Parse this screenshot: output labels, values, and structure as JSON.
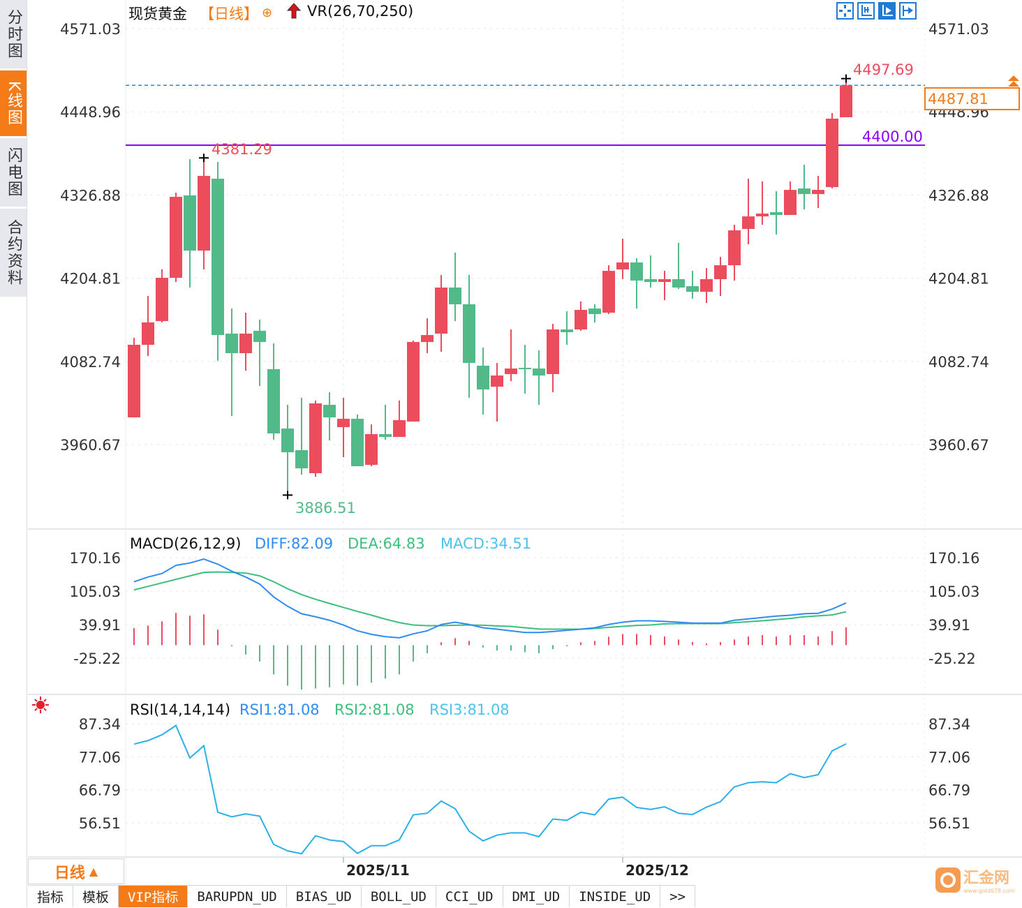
{
  "left_tabs": [
    {
      "label": "分时图",
      "active": false
    },
    {
      "label": "K线图",
      "active": true
    },
    {
      "label": "闪电图",
      "active": false
    },
    {
      "label": "合约资料",
      "active": false
    }
  ],
  "header": {
    "name": "现货黄金",
    "period": "【日线】",
    "indicator": "VR(26,70,250)",
    "icons": [
      "target-icon",
      "red-up-arrow-icon"
    ]
  },
  "toolbar": {
    "icons": [
      "crosshair-icon",
      "zoom-in-icon",
      "zoom-out-icon",
      "scroll-to-end-icon"
    ]
  },
  "colors": {
    "up": "#eb4d5c",
    "down": "#52b988",
    "ref_line": "#8b00ff",
    "last_price_line": "#1e88f0",
    "accent": "#f47b17",
    "diff": "#2f8cf0",
    "dea": "#3cbf7d",
    "rsi": "#2ab0e8"
  },
  "price_labels": {
    "high": "4381.29",
    "session_high": "4497.69",
    "low": "3886.51",
    "ref_line": "4400.00",
    "last_price": "4487.81"
  },
  "chart_data": [
    {
      "type": "candlestick",
      "title": "现货黄金",
      "y_ticks": [
        "4571.03",
        "4448.96",
        "4326.88",
        "4204.81",
        "4082.74",
        "3960.67"
      ],
      "ylim": [
        3960.67,
        4571.03
      ],
      "ref_line": 4400.0,
      "last_price": 4487.81,
      "x_ticks": [
        {
          "index": 15,
          "label": "2025/11"
        },
        {
          "index": 35,
          "label": "2025/12"
        }
      ],
      "ohlc": [
        [
          4000.6,
          4117.3,
          4000.6,
          4107.1
        ],
        [
          4107.1,
          4178.8,
          4090.7,
          4139.9
        ],
        [
          4141.9,
          4217.7,
          4139.9,
          4205.4
        ],
        [
          4205.4,
          4330.3,
          4199.3,
          4324.2
        ],
        [
          4326.3,
          4379.5,
          4191.1,
          4245.3
        ],
        [
          4245.3,
          4381.29,
          4217.7,
          4354.9
        ],
        [
          4350.8,
          4375.4,
          4083.5,
          4121.4
        ],
        [
          4123.5,
          4160.3,
          4002.6,
          4094.8
        ],
        [
          4094.8,
          4154.2,
          4069.2,
          4123.5
        ],
        [
          4127.6,
          4144.0,
          4046.7,
          4111.2
        ],
        [
          4071.3,
          4109.1,
          3967.8,
          3977.0
        ],
        [
          3984.2,
          4019.0,
          3886.51,
          3949.4
        ],
        [
          3952.5,
          4029.3,
          3916.6,
          3925.8
        ],
        [
          3918.7,
          4025.2,
          3913.5,
          4021.1
        ],
        [
          4019.0,
          4037.5,
          3966.8,
          4000.6
        ],
        [
          3986.3,
          4029.3,
          3942.2,
          3998.5
        ],
        [
          3998.5,
          4004.7,
          3928.9,
          3928.9
        ],
        [
          3930.9,
          3990.3,
          3928.9,
          3976.0
        ],
        [
          3976.0,
          4019.0,
          3967.8,
          3971.9
        ],
        [
          3971.9,
          4025.2,
          3971.9,
          3996.5
        ],
        [
          3994.4,
          4113.2,
          3994.4,
          4111.2
        ],
        [
          4111.2,
          4146.0,
          4094.8,
          4121.4
        ],
        [
          4123.5,
          4209.5,
          4096.9,
          4191.1
        ],
        [
          4191.1,
          4242.3,
          4141.9,
          4166.5
        ],
        [
          4166.5,
          4209.5,
          4029.3,
          4080.5
        ],
        [
          4076.4,
          4103.0,
          4004.7,
          4041.6
        ],
        [
          4045.6,
          4080.5,
          3994.4,
          4062.0
        ],
        [
          4064.1,
          4129.6,
          4053.8,
          4072.3
        ],
        [
          4073.3,
          4107.1,
          4035.4,
          4072.3
        ],
        [
          4072.3,
          4098.9,
          4019.0,
          4062.0
        ],
        [
          4064.1,
          4137.8,
          4037.5,
          4129.6
        ],
        [
          4129.6,
          4156.3,
          4107.1,
          4125.5
        ],
        [
          4129.6,
          4170.6,
          4127.6,
          4158.3
        ],
        [
          4160.3,
          4166.5,
          4139.9,
          4152.2
        ],
        [
          4154.2,
          4223.8,
          4152.2,
          4215.6
        ],
        [
          4217.7,
          4262.8,
          4203.4,
          4227.9
        ],
        [
          4227.9,
          4234.1,
          4160.3,
          4201.3
        ],
        [
          4203.4,
          4238.2,
          4191.1,
          4199.3
        ],
        [
          4199.3,
          4215.6,
          4172.6,
          4203.4
        ],
        [
          4203.4,
          4256.6,
          4189.0,
          4191.1
        ],
        [
          4193.1,
          4215.6,
          4174.7,
          4184.9
        ],
        [
          4184.9,
          4219.7,
          4168.5,
          4203.4
        ],
        [
          4203.4,
          4236.1,
          4178.8,
          4223.8
        ],
        [
          4223.8,
          4283.2,
          4201.3,
          4275.0
        ],
        [
          4277.1,
          4350.8,
          4254.6,
          4295.5
        ],
        [
          4295.5,
          4346.7,
          4283.2,
          4299.6
        ],
        [
          4301.7,
          4332.4,
          4268.9,
          4297.6
        ],
        [
          4297.6,
          4346.7,
          4297.6,
          4334.4
        ],
        [
          4336.5,
          4371.3,
          4305.8,
          4328.3
        ],
        [
          4328.3,
          4354.9,
          4307.8,
          4334.4
        ],
        [
          4338.5,
          4447.1,
          4336.5,
          4438.9
        ],
        [
          4441.0,
          4497.69,
          4441.0,
          4487.81
        ]
      ]
    },
    {
      "type": "line",
      "title": "MACD(26,12,9)",
      "y_ticks": [
        "170.16",
        "105.03",
        "39.91",
        "-25.22"
      ],
      "ylim": [
        -25.22,
        170.16
      ],
      "legend": [
        {
          "label": "DIFF:82.09"
        },
        {
          "label": "DEA:64.83"
        },
        {
          "label": "MACD:34.51"
        }
      ],
      "diff": [
        123.3,
        132.4,
        139.3,
        155.2,
        159.7,
        167.4,
        157.4,
        143.8,
        132.4,
        118.8,
        93.8,
        75.6,
        61.1,
        55.2,
        48.4,
        39.2,
        27.9,
        21.1,
        16.5,
        14.3,
        22.0,
        27.9,
        40.2,
        44.7,
        40.2,
        33.8,
        31.1,
        27.9,
        24.7,
        24.7,
        26.5,
        28.8,
        31.1,
        33.8,
        40.2,
        44.7,
        47.4,
        47.4,
        46.1,
        44.7,
        42.9,
        42.9,
        42.9,
        48.4,
        51.1,
        53.8,
        56.5,
        58.3,
        61.1,
        62.0,
        70.2,
        82.09
      ],
      "dea": [
        107.4,
        114.3,
        121.1,
        127.9,
        134.7,
        141.5,
        142.4,
        141.5,
        140.2,
        134.7,
        123.3,
        109.7,
        98.3,
        89.2,
        81.1,
        73.4,
        65.6,
        58.4,
        50.6,
        43.8,
        39.2,
        37.9,
        37.9,
        38.8,
        39.2,
        38.8,
        37.4,
        36.5,
        33.8,
        31.5,
        31.1,
        31.1,
        31.1,
        32.4,
        34.7,
        36.5,
        38.3,
        39.2,
        41.5,
        42.0,
        42.0,
        42.0,
        42.0,
        43.8,
        45.6,
        47.4,
        49.7,
        52.0,
        55.2,
        57.0,
        58.8,
        64.83
      ],
      "macd": [
        33.2,
        38.2,
        46.4,
        62.7,
        57.3,
        60.0,
        30.0,
        -2.3,
        -18.2,
        -31.8,
        -56.8,
        -78.6,
        -86.4,
        -84.1,
        -81.8,
        -76.4,
        -78.6,
        -72.7,
        -65.0,
        -56.8,
        -31.8,
        -15.9,
        5.5,
        13.6,
        8.2,
        -4.5,
        -10.5,
        -10.5,
        -13.6,
        -15.9,
        -7.7,
        -2.3,
        5.5,
        8.2,
        16.4,
        21.8,
        21.8,
        19.5,
        16.8,
        10.9,
        5.9,
        3.2,
        5.9,
        10.9,
        16.8,
        19.5,
        16.8,
        19.5,
        19.5,
        16.8,
        27.3,
        34.51
      ]
    },
    {
      "type": "line",
      "title": "RSI(14,14,14)",
      "y_ticks": [
        "87.34",
        "77.06",
        "66.79",
        "56.51"
      ],
      "ylim": [
        56.51,
        87.34
      ],
      "legend": [
        {
          "label": "RSI1:81.08"
        },
        {
          "label": "RSI2:81.08"
        },
        {
          "label": "RSI3:81.08"
        }
      ],
      "rsi": [
        81.0,
        82.1,
        83.9,
        86.8,
        76.7,
        80.5,
        59.8,
        58.4,
        59.3,
        58.6,
        49.8,
        47.8,
        46.9,
        52.5,
        51.2,
        50.7,
        47.0,
        49.4,
        49.4,
        51.2,
        59.0,
        59.5,
        63.3,
        60.9,
        53.9,
        50.9,
        52.7,
        53.4,
        53.4,
        52.2,
        57.7,
        57.3,
        59.8,
        59.0,
        63.9,
        64.5,
        61.3,
        60.7,
        61.5,
        59.5,
        59.1,
        61.4,
        63.1,
        67.7,
        69.0,
        69.3,
        69.0,
        71.8,
        70.6,
        71.5,
        78.9,
        81.08
      ]
    }
  ],
  "period_selector": {
    "label": "日线",
    "icon": "triangle-up-icon"
  },
  "bottom_tabs": [
    {
      "label": "指标"
    },
    {
      "label": "模板"
    },
    {
      "label": "VIP指标",
      "active": true
    },
    {
      "label": "BARUPDN_UD"
    },
    {
      "label": "BIAS_UD"
    },
    {
      "label": "BOLL_UD"
    },
    {
      "label": "CCI_UD"
    },
    {
      "label": "DMI_UD"
    },
    {
      "label": "INSIDE_UD"
    },
    {
      "label": ">>"
    }
  ],
  "watermark": {
    "text": "汇金网",
    "url": "www.gold678.com"
  }
}
